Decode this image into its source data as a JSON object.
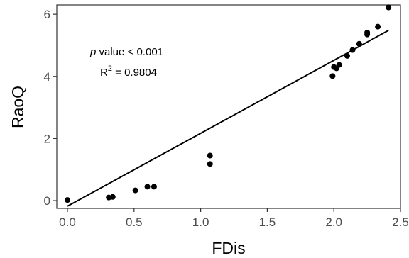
{
  "chart_data": {
    "type": "scatter",
    "title": "",
    "xlabel": "FDis",
    "ylabel": "RaoQ",
    "xlim": [
      -0.08,
      2.5
    ],
    "ylim": [
      -0.25,
      6.3
    ],
    "x_ticks": [
      0.0,
      0.5,
      1.0,
      1.5,
      2.0,
      2.5
    ],
    "x_tick_labels": [
      "0.0",
      "0.5",
      "1.0",
      "1.5",
      "2.0",
      "2.5"
    ],
    "y_ticks": [
      0,
      2,
      4,
      6
    ],
    "y_tick_labels": [
      "0",
      "2",
      "4",
      "6"
    ],
    "grid": false,
    "legend": "none",
    "points": [
      {
        "x": 0.0,
        "y": 0.02
      },
      {
        "x": 0.31,
        "y": 0.1
      },
      {
        "x": 0.34,
        "y": 0.12
      },
      {
        "x": 0.51,
        "y": 0.33
      },
      {
        "x": 0.6,
        "y": 0.45
      },
      {
        "x": 0.65,
        "y": 0.45
      },
      {
        "x": 1.07,
        "y": 1.45
      },
      {
        "x": 1.07,
        "y": 1.18
      },
      {
        "x": 1.99,
        "y": 4.01
      },
      {
        "x": 2.0,
        "y": 4.3
      },
      {
        "x": 2.02,
        "y": 4.26
      },
      {
        "x": 2.04,
        "y": 4.37
      },
      {
        "x": 2.1,
        "y": 4.66
      },
      {
        "x": 2.14,
        "y": 4.85
      },
      {
        "x": 2.19,
        "y": 5.05
      },
      {
        "x": 2.25,
        "y": 5.35
      },
      {
        "x": 2.25,
        "y": 5.41
      },
      {
        "x": 2.33,
        "y": 5.6
      },
      {
        "x": 2.41,
        "y": 6.22
      }
    ],
    "fit_line": {
      "x": [
        0.0,
        2.41
      ],
      "y": [
        -0.18,
        5.48
      ]
    },
    "annotations": {
      "p_symbol": "p",
      "p_text": " value < 0.001",
      "r2_base": "R",
      "r2_sup": "2",
      "r2_text": " = 0.9804"
    },
    "colors": {
      "points": "#000000",
      "line": "#000000",
      "axis": "#333333",
      "tick_text": "#4d4d4d"
    }
  }
}
